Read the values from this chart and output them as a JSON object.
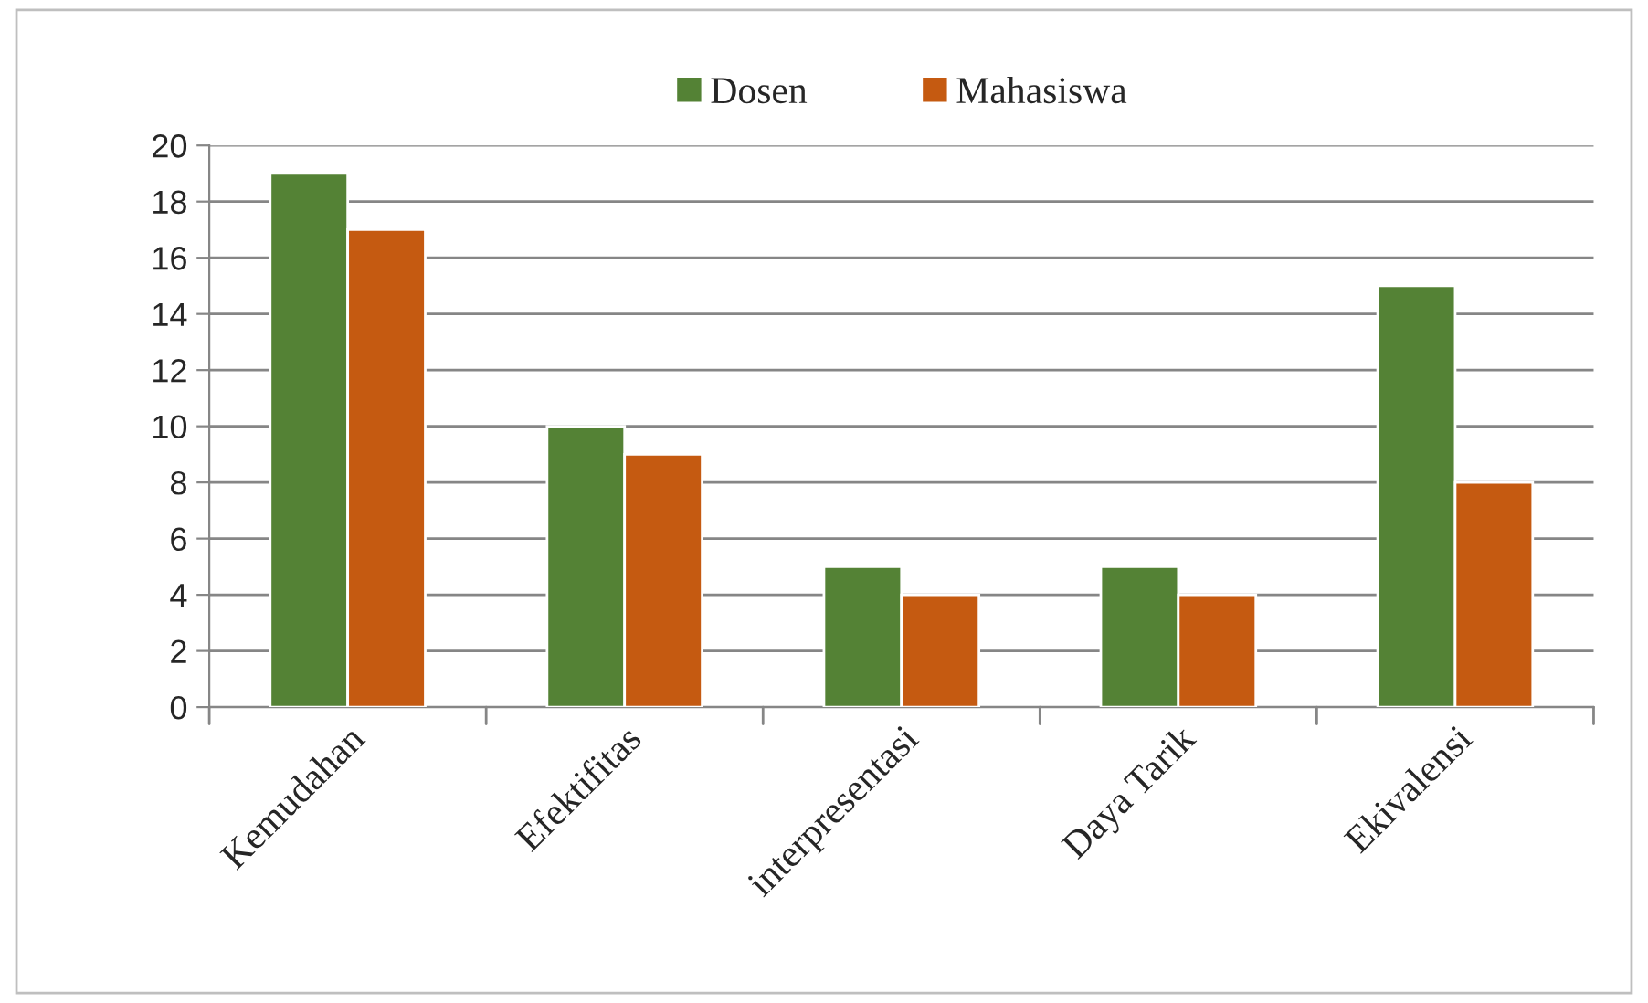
{
  "chart_data": {
    "type": "bar",
    "categories": [
      "Kemudahan",
      "Efektifitas",
      "interpresentasi",
      "Daya Tarik",
      "Ekivalensi"
    ],
    "series": [
      {
        "name": "Dosen",
        "color": "#548235",
        "values": [
          19,
          10,
          5,
          5,
          15
        ]
      },
      {
        "name": "Mahasiswa",
        "color": "#c55a11",
        "values": [
          17,
          9,
          4,
          4,
          8
        ]
      }
    ],
    "ylim": [
      0,
      20
    ],
    "yticks": [
      0,
      2,
      4,
      6,
      8,
      10,
      12,
      14,
      16,
      18,
      20
    ],
    "grid": "y",
    "legend": "top"
  }
}
